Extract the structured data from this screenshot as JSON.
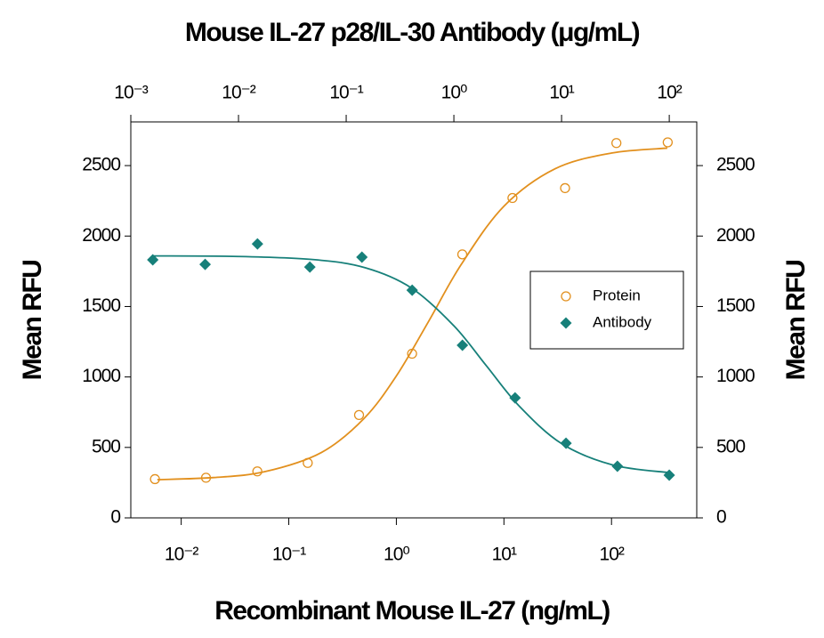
{
  "chart_data": {
    "type": "scatter",
    "x2label": "Mouse IL-27 p28/IL-30 Antibody (μg/mL)",
    "xlabel": "Recombinant Mouse IL-27 (ng/mL)",
    "ylabel": "Mean RFU",
    "y2label": "Mean RFU",
    "xscale": "log",
    "x2scale": "log",
    "xlim": [
      0.0034,
      620
    ],
    "xticks": [
      {
        "value": 0.01,
        "label": "10⁻²"
      },
      {
        "value": 0.1,
        "label": "10⁻¹"
      },
      {
        "value": 1,
        "label": "10⁰"
      },
      {
        "value": 10,
        "label": "10¹"
      },
      {
        "value": 100,
        "label": "10²"
      }
    ],
    "x2lim": [
      0.001,
      180
    ],
    "x2ticks": [
      {
        "value": 0.001,
        "label": "10⁻³"
      },
      {
        "value": 0.01,
        "label": "10⁻²"
      },
      {
        "value": 0.1,
        "label": "10⁻¹"
      },
      {
        "value": 1,
        "label": "10⁰"
      },
      {
        "value": 10,
        "label": "10¹"
      },
      {
        "value": 100,
        "label": "10²"
      }
    ],
    "ylim": [
      0,
      2810
    ],
    "yticks": [
      0,
      500,
      1000,
      1500,
      2000,
      2500
    ],
    "y2lim": [
      0,
      2810
    ],
    "y2ticks": [
      0,
      500,
      1000,
      1500,
      2000,
      2500
    ],
    "legend": "center right",
    "series": [
      {
        "name": "Protein",
        "color": "#e2901e",
        "marker": "circle-open",
        "xaxis": "x",
        "x": [
          0.0057,
          0.017,
          0.051,
          0.15,
          0.45,
          1.4,
          4.1,
          12,
          37,
          111,
          333
        ],
        "values": [
          275,
          285,
          330,
          390,
          730,
          1165,
          1870,
          2270,
          2340,
          2660,
          2665
        ],
        "fit": {
          "x": [
            0.006,
            0.02,
            0.06,
            0.2,
            0.5,
            1,
            2,
            4,
            10,
            30,
            100,
            330
          ],
          "values": [
            271,
            286,
            328,
            463,
            705,
            1007,
            1396,
            1797,
            2212,
            2478,
            2589,
            2624
          ]
        }
      },
      {
        "name": "Antibody",
        "color": "#17807a",
        "marker": "diamond",
        "xaxis": "x2",
        "x": [
          0.0016,
          0.0049,
          0.015,
          0.046,
          0.14,
          0.41,
          1.2,
          3.7,
          11,
          33,
          100
        ],
        "values": [
          1831,
          1799,
          1944,
          1780,
          1850,
          1616,
          1225,
          852,
          530,
          366,
          303
        ],
        "fit": {
          "x": [
            0.0016,
            0.01,
            0.05,
            0.15,
            0.4,
            1,
            2,
            4,
            10,
            30,
            100
          ],
          "values": [
            1859,
            1855,
            1833,
            1775,
            1633,
            1363,
            1080,
            797,
            527,
            375,
            321
          ]
        }
      }
    ]
  }
}
